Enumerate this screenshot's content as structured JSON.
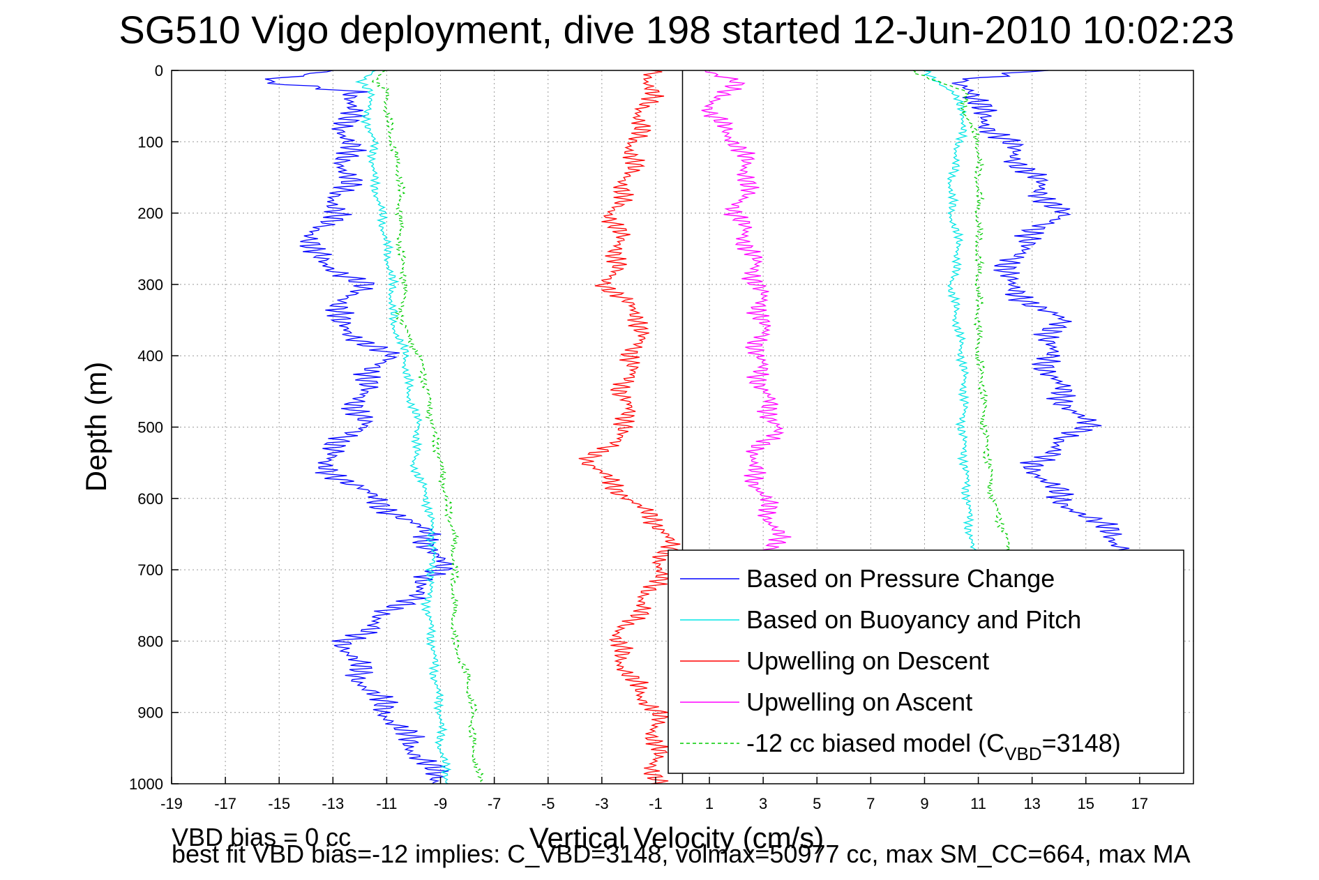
{
  "chart_data": {
    "type": "line",
    "title": "SG510 Vigo deployment, dive 198 started 12-Jun-2010 10:02:23",
    "xlabel": "Vertical Velocity (cm/s)",
    "ylabel": "Depth (m)",
    "xlim": [
      -19,
      19
    ],
    "ylim": [
      0,
      1000
    ],
    "y_reversed": true,
    "grid": true,
    "x_ticks": [
      -19,
      -17,
      -15,
      -13,
      -11,
      -9,
      -7,
      -5,
      -3,
      -1,
      1,
      3,
      5,
      7,
      9,
      11,
      13,
      15,
      17
    ],
    "y_ticks": [
      0,
      100,
      200,
      300,
      400,
      500,
      600,
      700,
      800,
      900,
      1000
    ],
    "zero_line_x": 0,
    "legend_position": "bottom-right",
    "series": [
      {
        "name": "Based on Pressure Change",
        "color": "#0000ff",
        "style": "solid",
        "depth": [
          0,
          15,
          30,
          60,
          100,
          150,
          200,
          250,
          300,
          350,
          400,
          450,
          500,
          550,
          600,
          650,
          700,
          750,
          800,
          850,
          900,
          950,
          1000
        ],
        "descent": [
          -13,
          -16,
          -12,
          -12.5,
          -12.5,
          -12.5,
          -13,
          -14,
          -12,
          -13,
          -11,
          -12,
          -12,
          -13.5,
          -11.5,
          -9.5,
          -9,
          -10.5,
          -12.5,
          -12,
          -11,
          -10,
          -9
        ],
        "ascent": [
          13,
          10,
          11,
          11,
          12,
          13,
          14,
          12.5,
          12,
          14,
          13.5,
          14,
          15,
          13,
          14,
          16,
          17,
          null,
          null,
          null,
          null,
          null,
          null
        ]
      },
      {
        "name": "Based on Buoyancy and Pitch",
        "color": "#00e5e5",
        "style": "solid",
        "depth": [
          0,
          15,
          30,
          60,
          100,
          150,
          200,
          250,
          300,
          350,
          400,
          450,
          500,
          550,
          600,
          650,
          700,
          750,
          800,
          850,
          900,
          950,
          1000
        ],
        "descent": [
          -11.5,
          -12,
          -11.5,
          -11.8,
          -11.5,
          -11.5,
          -11.2,
          -11,
          -10.8,
          -10.8,
          -10.3,
          -10.2,
          -9.8,
          -10,
          -9.5,
          -9.3,
          -9.3,
          -9.5,
          -9.3,
          -9.2,
          -9,
          -9,
          -8.7
        ],
        "ascent": [
          9,
          9.5,
          10,
          10.5,
          10.3,
          10,
          10,
          10.3,
          10,
          10.2,
          10.4,
          10.5,
          10.4,
          10.5,
          10.6,
          10.7,
          10.8,
          null,
          null,
          null,
          null,
          null,
          null
        ]
      },
      {
        "name": "Upwelling on Descent",
        "color": "#ff0000",
        "style": "solid",
        "depth": [
          0,
          15,
          30,
          60,
          100,
          150,
          200,
          250,
          300,
          350,
          400,
          450,
          500,
          550,
          600,
          650,
          700,
          750,
          800,
          850,
          900,
          950,
          1000
        ],
        "values": [
          -1,
          -1.2,
          -1.2,
          -1.5,
          -1.8,
          -2,
          -2.6,
          -2.3,
          -2.8,
          -1.5,
          -1.8,
          -2.2,
          -2,
          -3.5,
          -2,
          -0.5,
          -0.8,
          -1.5,
          -2.5,
          -2,
          -1,
          -1,
          -1
        ]
      },
      {
        "name": "Upwelling on Ascent",
        "color": "#ff00ff",
        "style": "solid",
        "depth": [
          0,
          15,
          30,
          60,
          100,
          150,
          200,
          250,
          300,
          350,
          400,
          450,
          500,
          550,
          600,
          650,
          700,
          750,
          800,
          850,
          900,
          950,
          1000
        ],
        "values": [
          1,
          2,
          1.5,
          1,
          2,
          2.5,
          2,
          2.5,
          2.8,
          3,
          2.8,
          3,
          3.5,
          2.5,
          3,
          3.5,
          3.2,
          null,
          null,
          null,
          null,
          null,
          null
        ]
      },
      {
        "name": "-12 cc biased model (C_VBD=3148)",
        "color": "#00cc00",
        "style": "dashed",
        "depth": [
          0,
          15,
          30,
          60,
          100,
          150,
          200,
          250,
          300,
          350,
          400,
          450,
          500,
          550,
          600,
          650,
          700,
          750,
          800,
          850,
          900,
          950,
          1000
        ],
        "descent": [
          -11,
          -11.5,
          -11,
          -11,
          -10.8,
          -10.5,
          -10.5,
          -10.5,
          -10.3,
          -10.5,
          -9.8,
          -9.5,
          -9.3,
          -9,
          -8.8,
          -8.5,
          -8.5,
          -8.5,
          -8.5,
          -8,
          -7.8,
          -7.8,
          -7.5
        ],
        "ascent": [
          8.5,
          9.5,
          10.5,
          10.5,
          11,
          11,
          11,
          11,
          11,
          11,
          11,
          11.2,
          11.2,
          11.4,
          11.5,
          12,
          12.2,
          null,
          null,
          null,
          null,
          null,
          null
        ]
      }
    ],
    "legend": [
      {
        "label": "Based on Pressure Change",
        "color": "#0000ff",
        "style": "solid"
      },
      {
        "label": "Based on Buoyancy and Pitch",
        "color": "#00e5e5",
        "style": "solid"
      },
      {
        "label": "Upwelling on Descent",
        "color": "#ff0000",
        "style": "solid"
      },
      {
        "label": "Upwelling on Ascent",
        "color": "#ff00ff",
        "style": "solid"
      },
      {
        "label": "-12 cc biased model (C",
        "sub": "VBD",
        "tail": "=3148)",
        "color": "#00cc00",
        "style": "dashed"
      }
    ],
    "annotations": [
      "VBD bias = 0 cc",
      "best fit VBD bias=-12 implies: C_VBD=3148, volmax=50977 cc, max SM_CC=664, max MA"
    ]
  }
}
